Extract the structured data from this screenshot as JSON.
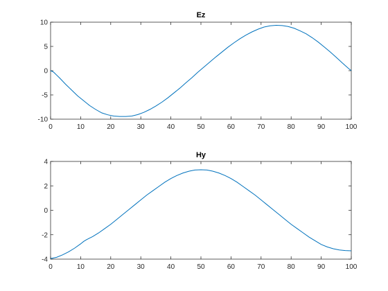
{
  "colors": {
    "series": "#0072BD",
    "axis": "#262626",
    "background": "#ffffff"
  },
  "chart_data": [
    {
      "type": "line",
      "title": "Ez",
      "xlabel": "",
      "ylabel": "",
      "xlim": [
        0,
        100
      ],
      "ylim": [
        -10,
        10
      ],
      "xticks": [
        0,
        10,
        20,
        30,
        40,
        50,
        60,
        70,
        80,
        90,
        100
      ],
      "yticks": [
        -10,
        -5,
        0,
        5,
        10
      ],
      "grid": false,
      "series": [
        {
          "x": [
            0,
            1,
            2,
            3,
            5,
            7,
            9,
            11,
            13,
            15,
            17,
            19,
            21,
            23,
            25,
            27,
            29,
            31,
            33,
            35,
            37,
            39,
            41,
            43,
            45,
            47,
            49,
            51,
            53,
            55,
            57,
            59,
            61,
            63,
            65,
            67,
            69,
            71,
            73,
            75,
            77,
            79,
            81,
            83,
            85,
            87,
            89,
            91,
            93,
            95,
            97,
            99,
            100
          ],
          "y": [
            0,
            -0.3,
            -0.9,
            -1.5,
            -2.8,
            -4.0,
            -5.2,
            -6.2,
            -7.2,
            -8.0,
            -8.7,
            -9.1,
            -9.35,
            -9.45,
            -9.45,
            -9.35,
            -9.05,
            -8.6,
            -8.0,
            -7.3,
            -6.5,
            -5.6,
            -4.6,
            -3.6,
            -2.5,
            -1.45,
            -0.3,
            0.75,
            1.8,
            2.85,
            3.85,
            4.85,
            5.75,
            6.6,
            7.35,
            8.0,
            8.55,
            9.0,
            9.25,
            9.35,
            9.3,
            9.1,
            8.75,
            8.2,
            7.6,
            6.8,
            5.9,
            4.9,
            3.85,
            2.75,
            1.6,
            0.5,
            0
          ]
        }
      ]
    },
    {
      "type": "line",
      "title": "Hy",
      "xlabel": "",
      "ylabel": "",
      "xlim": [
        0,
        100
      ],
      "ylim": [
        -4,
        4
      ],
      "xticks": [
        0,
        10,
        20,
        30,
        40,
        50,
        60,
        70,
        80,
        90,
        100
      ],
      "yticks": [
        -4,
        -2,
        0,
        2,
        4
      ],
      "grid": false,
      "series": [
        {
          "x": [
            0,
            2,
            4,
            6,
            8,
            10,
            11,
            12,
            14,
            16,
            18,
            20,
            22,
            24,
            26,
            28,
            30,
            32,
            34,
            36,
            38,
            40,
            42,
            44,
            46,
            48,
            50,
            52,
            54,
            56,
            58,
            60,
            62,
            64,
            66,
            68,
            70,
            72,
            74,
            76,
            78,
            80,
            82,
            84,
            86,
            88,
            90,
            92,
            94,
            96,
            98,
            100
          ],
          "y": [
            -3.95,
            -3.85,
            -3.65,
            -3.4,
            -3.1,
            -2.75,
            -2.55,
            -2.4,
            -2.15,
            -1.85,
            -1.5,
            -1.15,
            -0.75,
            -0.35,
            0.05,
            0.45,
            0.85,
            1.25,
            1.6,
            1.95,
            2.3,
            2.6,
            2.85,
            3.05,
            3.2,
            3.3,
            3.32,
            3.3,
            3.2,
            3.05,
            2.85,
            2.6,
            2.3,
            1.95,
            1.6,
            1.25,
            0.85,
            0.45,
            0.05,
            -0.35,
            -0.75,
            -1.15,
            -1.5,
            -1.85,
            -2.2,
            -2.5,
            -2.8,
            -3.0,
            -3.15,
            -3.25,
            -3.3,
            -3.32
          ]
        }
      ]
    }
  ]
}
